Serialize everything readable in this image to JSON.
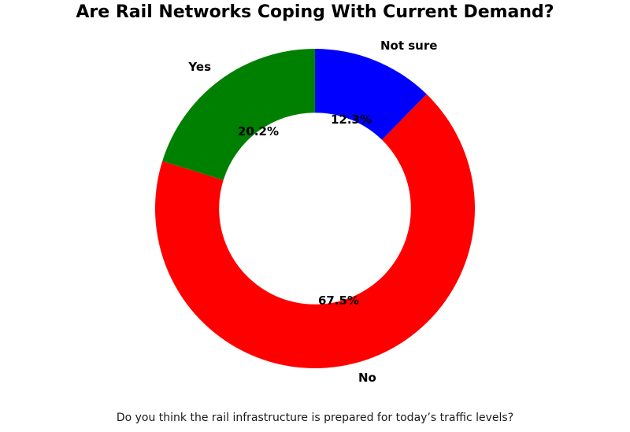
{
  "title": "Are Rail Networks Coping With Current Demand?",
  "caption": "Do you think the rail infrastructure is prepared for today’s traffic levels?",
  "chart_data": {
    "type": "pie",
    "subtype": "donut",
    "title": "Are Rail Networks Coping With Current Demand?",
    "categories": [
      "Not sure",
      "No",
      "Yes"
    ],
    "values": [
      12.3,
      67.5,
      20.2
    ],
    "value_labels": [
      "12.3%",
      "67.5%",
      "20.2%"
    ],
    "colors": [
      "#0000ff",
      "#ff0000",
      "#008000"
    ],
    "start_angle_deg": 90,
    "direction": "clockwise",
    "donut_hole_ratio": 0.6,
    "label_distance_ratio": 1.1,
    "pct_distance_ratio": 0.6,
    "legend": "none",
    "background_color": "#ffffff",
    "text_color": "#000000"
  }
}
